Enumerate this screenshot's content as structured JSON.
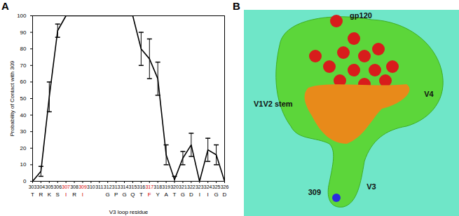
{
  "chart_data": {
    "type": "line",
    "panel": "A",
    "x": [
      303,
      304,
      305,
      306,
      307,
      308,
      309,
      310,
      311,
      312,
      313,
      314,
      315,
      316,
      317,
      318,
      319,
      320,
      321,
      322,
      323,
      324,
      325,
      326
    ],
    "categories": [
      "T",
      "R",
      "K",
      "S",
      "I",
      "R",
      "I",
      null,
      null,
      "G",
      "P",
      "G",
      "Q",
      "T",
      "F",
      "Y",
      "A",
      "T",
      "G",
      "D",
      "I",
      "I",
      "G",
      "D"
    ],
    "values": [
      0,
      6,
      51,
      91,
      100,
      100,
      100,
      100,
      100,
      100,
      100,
      100,
      100,
      80,
      74,
      62,
      16,
      1,
      14,
      22,
      0,
      19,
      16,
      0
    ],
    "errors": [
      0,
      3,
      9,
      4,
      0,
      0,
      0,
      0,
      0,
      0,
      0,
      0,
      0,
      10,
      12,
      10,
      6,
      2,
      4,
      7,
      0,
      7,
      6,
      0
    ],
    "highlighted": [
      307,
      309,
      317
    ],
    "y_label": "Probability of Contact with 309",
    "x_label": "V3 loop residue",
    "xlim": [
      303,
      326
    ],
    "xticks": [
      303,
      304,
      305,
      306,
      307,
      308,
      309,
      310,
      311,
      312,
      313,
      314,
      315,
      316,
      317,
      318,
      319,
      320,
      321,
      322,
      323,
      324,
      325,
      326
    ],
    "ylim": [
      0,
      100
    ],
    "yticks": [
      0,
      10,
      20,
      30,
      40,
      50,
      60,
      70,
      80,
      90,
      100
    ],
    "color": "#000000",
    "grid": false
  },
  "diagram": {
    "panel": "B",
    "labels": {
      "top": "gp120",
      "right": "V4",
      "left": "V1V2 stem",
      "bottom": "V3",
      "residue": "309"
    }
  }
}
